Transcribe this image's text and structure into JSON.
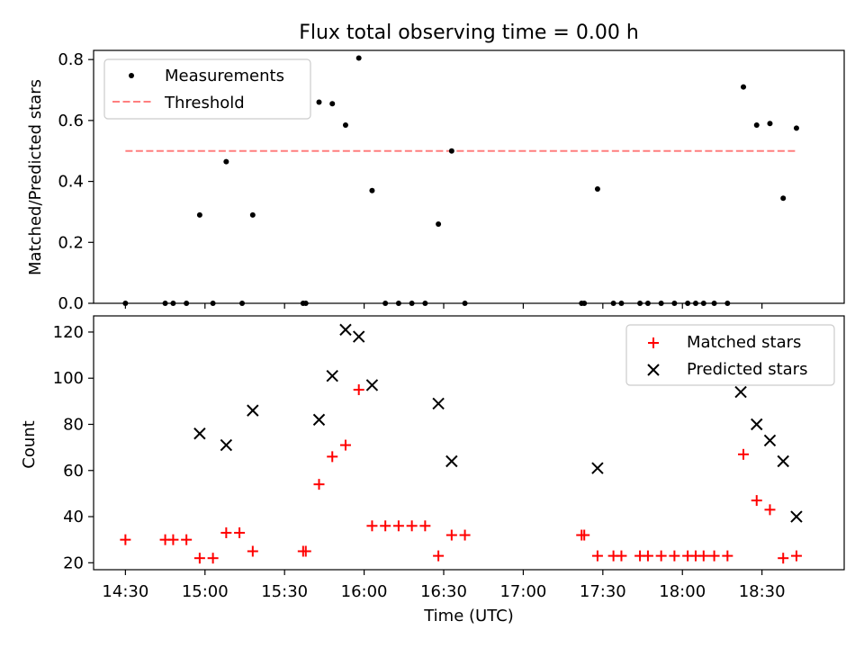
{
  "chart_data": [
    {
      "type": "scatter",
      "title": "Flux total observing time = 0.00 h",
      "ylabel": "Matched/Predicted stars",
      "xlabel": "",
      "xlim": [
        "14:18",
        "19:01"
      ],
      "ylim": [
        0,
        0.83
      ],
      "yticks": [
        0.0,
        0.2,
        0.4,
        0.6,
        0.8
      ],
      "ytick_labels": [
        "0.0",
        "0.2",
        "0.4",
        "0.6",
        "0.8"
      ],
      "legend": {
        "position": "top-left",
        "entries": [
          "Measurements",
          "Threshold"
        ]
      },
      "threshold": {
        "name": "Threshold",
        "value": 0.5,
        "x_range": [
          "14:30",
          "18:43"
        ],
        "color": "#ff7f7f",
        "style": "dashed"
      },
      "series": [
        {
          "name": "Measurements",
          "marker": "dot",
          "color": "#000000",
          "points": [
            [
              "14:30",
              0.0
            ],
            [
              "14:45",
              0.0
            ],
            [
              "14:48",
              0.0
            ],
            [
              "14:53",
              0.0
            ],
            [
              "14:58",
              0.29
            ],
            [
              "15:03",
              0.0
            ],
            [
              "15:08",
              0.465
            ],
            [
              "15:14",
              0.0
            ],
            [
              "15:18",
              0.29
            ],
            [
              "15:37",
              0.0
            ],
            [
              "15:38",
              0.0
            ],
            [
              "15:43",
              0.66
            ],
            [
              "15:48",
              0.655
            ],
            [
              "15:53",
              0.585
            ],
            [
              "15:58",
              0.805
            ],
            [
              "16:03",
              0.37
            ],
            [
              "16:08",
              0.0
            ],
            [
              "16:13",
              0.0
            ],
            [
              "16:18",
              0.0
            ],
            [
              "16:23",
              0.0
            ],
            [
              "16:28",
              0.26
            ],
            [
              "16:33",
              0.5
            ],
            [
              "16:38",
              0.0
            ],
            [
              "17:22",
              0.0
            ],
            [
              "17:23",
              0.0
            ],
            [
              "17:28",
              0.375
            ],
            [
              "17:34",
              0.0
            ],
            [
              "17:37",
              0.0
            ],
            [
              "17:44",
              0.0
            ],
            [
              "17:47",
              0.0
            ],
            [
              "17:52",
              0.0
            ],
            [
              "17:57",
              0.0
            ],
            [
              "18:02",
              0.0
            ],
            [
              "18:05",
              0.0
            ],
            [
              "18:08",
              0.0
            ],
            [
              "18:12",
              0.0
            ],
            [
              "18:17",
              0.0
            ],
            [
              "18:23",
              0.71
            ],
            [
              "18:28",
              0.585
            ],
            [
              "18:33",
              0.59
            ],
            [
              "18:38",
              0.345
            ],
            [
              "18:43",
              0.575
            ]
          ]
        }
      ]
    },
    {
      "type": "scatter",
      "title": "",
      "ylabel": "Count",
      "xlabel": "Time (UTC)",
      "xlim": [
        "14:18",
        "19:01"
      ],
      "ylim": [
        17,
        127
      ],
      "yticks": [
        20,
        40,
        60,
        80,
        100,
        120
      ],
      "ytick_labels": [
        "20",
        "40",
        "60",
        "80",
        "100",
        "120"
      ],
      "xticks": [
        "14:30",
        "15:00",
        "15:30",
        "16:00",
        "16:30",
        "17:00",
        "17:30",
        "18:00",
        "18:30"
      ],
      "xtick_labels": [
        "14:30",
        "15:00",
        "15:30",
        "16:00",
        "16:30",
        "17:00",
        "17:30",
        "18:00",
        "18:30"
      ],
      "legend": {
        "position": "top-right",
        "entries": [
          "Matched stars",
          "Predicted stars"
        ]
      },
      "series": [
        {
          "name": "Matched stars",
          "marker": "plus",
          "color": "#ff0000",
          "points": [
            [
              "14:30",
              30
            ],
            [
              "14:45",
              30
            ],
            [
              "14:48",
              30
            ],
            [
              "14:53",
              30
            ],
            [
              "14:58",
              22
            ],
            [
              "15:03",
              22
            ],
            [
              "15:08",
              33
            ],
            [
              "15:13",
              33
            ],
            [
              "15:18",
              25
            ],
            [
              "15:37",
              25
            ],
            [
              "15:38",
              25
            ],
            [
              "15:43",
              54
            ],
            [
              "15:48",
              66
            ],
            [
              "15:53",
              71
            ],
            [
              "15:58",
              95
            ],
            [
              "16:03",
              36
            ],
            [
              "16:08",
              36
            ],
            [
              "16:13",
              36
            ],
            [
              "16:18",
              36
            ],
            [
              "16:23",
              36
            ],
            [
              "16:28",
              23
            ],
            [
              "16:33",
              32
            ],
            [
              "16:38",
              32
            ],
            [
              "17:22",
              32
            ],
            [
              "17:23",
              32
            ],
            [
              "17:28",
              23
            ],
            [
              "17:34",
              23
            ],
            [
              "17:37",
              23
            ],
            [
              "17:44",
              23
            ],
            [
              "17:47",
              23
            ],
            [
              "17:52",
              23
            ],
            [
              "17:57",
              23
            ],
            [
              "18:02",
              23
            ],
            [
              "18:05",
              23
            ],
            [
              "18:08",
              23
            ],
            [
              "18:12",
              23
            ],
            [
              "18:17",
              23
            ],
            [
              "18:23",
              67
            ],
            [
              "18:28",
              47
            ],
            [
              "18:33",
              43
            ],
            [
              "18:38",
              22
            ],
            [
              "18:43",
              23
            ]
          ]
        },
        {
          "name": "Predicted stars",
          "marker": "x",
          "color": "#000000",
          "points": [
            [
              "14:58",
              76
            ],
            [
              "15:08",
              71
            ],
            [
              "15:18",
              86
            ],
            [
              "15:43",
              82
            ],
            [
              "15:48",
              101
            ],
            [
              "15:53",
              121
            ],
            [
              "15:58",
              118
            ],
            [
              "16:03",
              97
            ],
            [
              "16:28",
              89
            ],
            [
              "16:33",
              64
            ],
            [
              "17:28",
              61
            ],
            [
              "18:22",
              94
            ],
            [
              "18:28",
              80
            ],
            [
              "18:33",
              73
            ],
            [
              "18:38",
              64
            ],
            [
              "18:43",
              40
            ]
          ]
        }
      ]
    }
  ]
}
